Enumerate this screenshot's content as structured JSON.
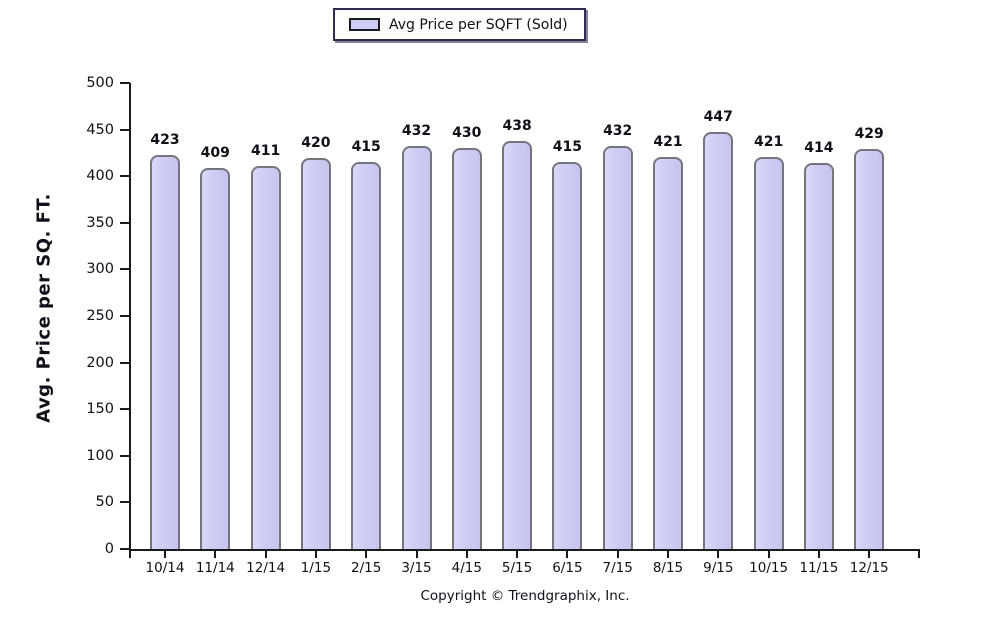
{
  "chart_data": {
    "type": "bar",
    "legend_label": "Avg Price per SQFT (Sold)",
    "categories": [
      "10/14",
      "11/14",
      "12/14",
      "1/15",
      "2/15",
      "3/15",
      "4/15",
      "5/15",
      "6/15",
      "7/15",
      "8/15",
      "9/15",
      "10/15",
      "11/15",
      "12/15"
    ],
    "values": [
      423,
      409,
      411,
      420,
      415,
      432,
      430,
      438,
      415,
      432,
      421,
      447,
      421,
      414,
      429
    ],
    "title": "",
    "xlabel": "",
    "ylabel": "Avg. Price per SQ. FT.",
    "ylim": [
      0,
      500
    ],
    "yticks": [
      0,
      50,
      100,
      150,
      200,
      250,
      300,
      350,
      400,
      450,
      500
    ],
    "grid": false,
    "legend_position": "top-center",
    "value_labels_shown": true,
    "copyright": "Copyright © Trendgraphix, Inc.",
    "colors": {
      "bar_fill": "#cdcdf5",
      "bar_border": "#75757d",
      "axis": "#1a1a1a",
      "text": "#10101a",
      "legend_border": "#2d2d52"
    }
  }
}
